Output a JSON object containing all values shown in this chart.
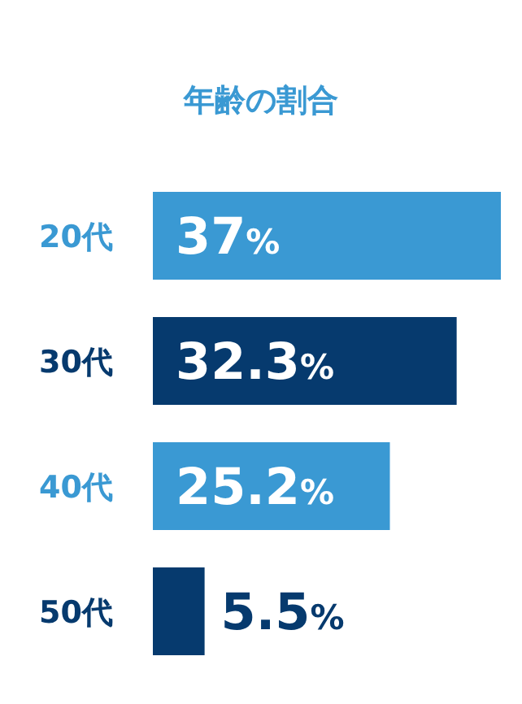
{
  "chart_data": {
    "type": "bar",
    "orientation": "horizontal",
    "title": "年齢の割合",
    "categories": [
      "20代",
      "30代",
      "40代",
      "50代"
    ],
    "values": [
      37,
      32.3,
      25.2,
      5.5
    ],
    "colors": [
      "#3a99d3",
      "#063a6e",
      "#3a99d3",
      "#063a6e"
    ],
    "value_labels": [
      "37%",
      "32.3%",
      "25.2%",
      "5.5%"
    ]
  }
}
